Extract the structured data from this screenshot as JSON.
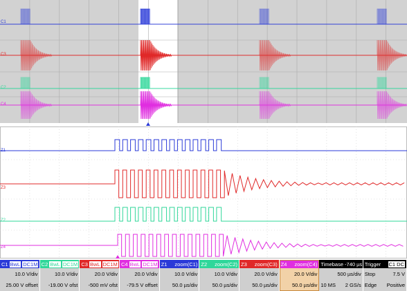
{
  "top_panel": {
    "trace_labels": [
      "C1",
      "C3",
      "C2",
      "C4"
    ]
  },
  "zoom_panel": {
    "trace_labels": [
      "Z1",
      "Z3",
      "Z2",
      "Z4"
    ]
  },
  "status_bar": [
    {
      "header": [
        "C1",
        "BwL",
        "DC1M"
      ],
      "color": "#2a3ad8",
      "rows": [
        [
          "10.0 V/div"
        ],
        [
          "25.00 V offset"
        ]
      ]
    },
    {
      "header": [
        "C2",
        "BwL",
        "DC1M"
      ],
      "color": "#2fd79a",
      "rows": [
        [
          "10.0 V/div"
        ],
        [
          "-19.00 V ofst"
        ]
      ]
    },
    {
      "header": [
        "C3",
        "BwL",
        "DC1M"
      ],
      "color": "#e02828",
      "rows": [
        [
          "20.0 V/div"
        ],
        [
          "-500 mV ofst"
        ]
      ]
    },
    {
      "header": [
        "C4",
        "BwL",
        "DC1M"
      ],
      "color": "#e02ee0",
      "rows": [
        [
          "20.0 V/div"
        ],
        [
          "-79.5 V offset"
        ]
      ]
    },
    {
      "header": [
        "Z1",
        "zoom(C1)"
      ],
      "color": "#2a3ad8",
      "rows": [
        [
          "10.0 V/div"
        ],
        [
          "50.0 µs/div"
        ]
      ]
    },
    {
      "header": [
        "Z2",
        "zoom(C2)"
      ],
      "color": "#2fd79a",
      "rows": [
        [
          "10.0 V/div"
        ],
        [
          "50.0 µs/div"
        ]
      ]
    },
    {
      "header": [
        "Z3",
        "zoom(C3)"
      ],
      "color": "#e02828",
      "rows": [
        [
          "20.0 V/div"
        ],
        [
          "50.0 µs/div"
        ]
      ]
    },
    {
      "header": [
        "Z4",
        "zoom(C4)"
      ],
      "color": "#e02ee0",
      "rows": [
        [
          "20.0 V/div"
        ],
        [
          "50.0 µs/div"
        ]
      ]
    },
    {
      "header": [
        "Timebase",
        "-740 µs"
      ],
      "color": "#000000",
      "rows": [
        [
          "500 µs/div"
        ],
        [
          "10 MS",
          "2 GS/s"
        ]
      ]
    },
    {
      "header": [
        "Trigger",
        "C1 DC"
      ],
      "color": "#000000",
      "rows": [
        [
          "Stop",
          "7.5 V"
        ],
        [
          "Edge",
          "Positive"
        ]
      ]
    }
  ]
}
